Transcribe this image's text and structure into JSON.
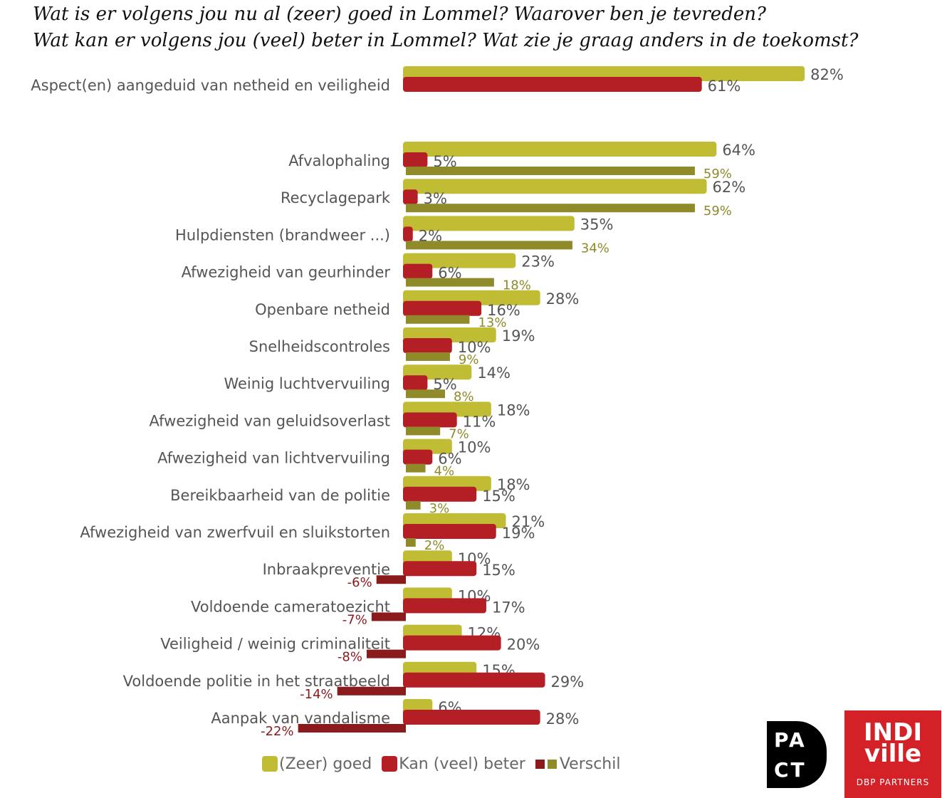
{
  "title": {
    "line1": "Wat is er volgens jou nu al (zeer) goed in Lommel? Waarover ben je tevreden?",
    "line2": "Wat kan er volgens jou (veel) beter in Lommel? Wat zie je graag anders in de toekomst?"
  },
  "colors": {
    "goed": "#c0bd35",
    "beter": "#b41e25",
    "diff_positive": "#8f8a2a",
    "diff_negative": "#8a1a1c",
    "diff_positive_text": "#8f8a2a",
    "diff_negative_text": "#8a1a1c"
  },
  "chart_data": {
    "type": "bar",
    "orientation": "horizontal",
    "unit": "%",
    "categories": [
      "Aspect(en) aangeduid van netheid en veiligheid",
      "Afvalophaling",
      "Recyclagepark",
      "Hulpdiensten (brandweer ...)",
      "Afwezigheid van geurhinder",
      "Openbare netheid",
      "Snelheidscontroles",
      "Weinig luchtvervuiling",
      "Afwezigheid van geluidsoverlast",
      "Afwezigheid van lichtvervuiling",
      "Bereikbaarheid van de politie",
      "Afwezigheid van zwerfvuil en sluikstorten",
      "Inbraakpreventie",
      "Voldoende cameratoezicht",
      "Veiligheid / weinig criminaliteit",
      "Voldoende politie in het straatbeeld",
      "Aanpak van vandalisme"
    ],
    "series": [
      {
        "name": "(Zeer) goed",
        "values": [
          82,
          64,
          62,
          35,
          23,
          28,
          19,
          14,
          18,
          10,
          18,
          21,
          10,
          10,
          12,
          15,
          6
        ]
      },
      {
        "name": "Kan (veel) beter",
        "values": [
          61,
          5,
          3,
          2,
          6,
          16,
          10,
          5,
          11,
          6,
          15,
          19,
          15,
          17,
          20,
          29,
          28
        ]
      },
      {
        "name": "Verschil",
        "values": [
          null,
          59,
          59,
          34,
          18,
          13,
          9,
          8,
          7,
          4,
          3,
          2,
          -6,
          -7,
          -8,
          -14,
          -22
        ]
      }
    ],
    "legend_position": "bottom",
    "grid": false
  },
  "legend": {
    "goed": "(Zeer) goed",
    "beter": "Kan (veel) beter",
    "verschil": "Verschil"
  },
  "logos": {
    "pact_line1": "PA",
    "pact_line2": "CT",
    "indiville_word1": "INDI",
    "indiville_word2": "ville",
    "indiville_tagline": "DBP PARTNERS"
  }
}
